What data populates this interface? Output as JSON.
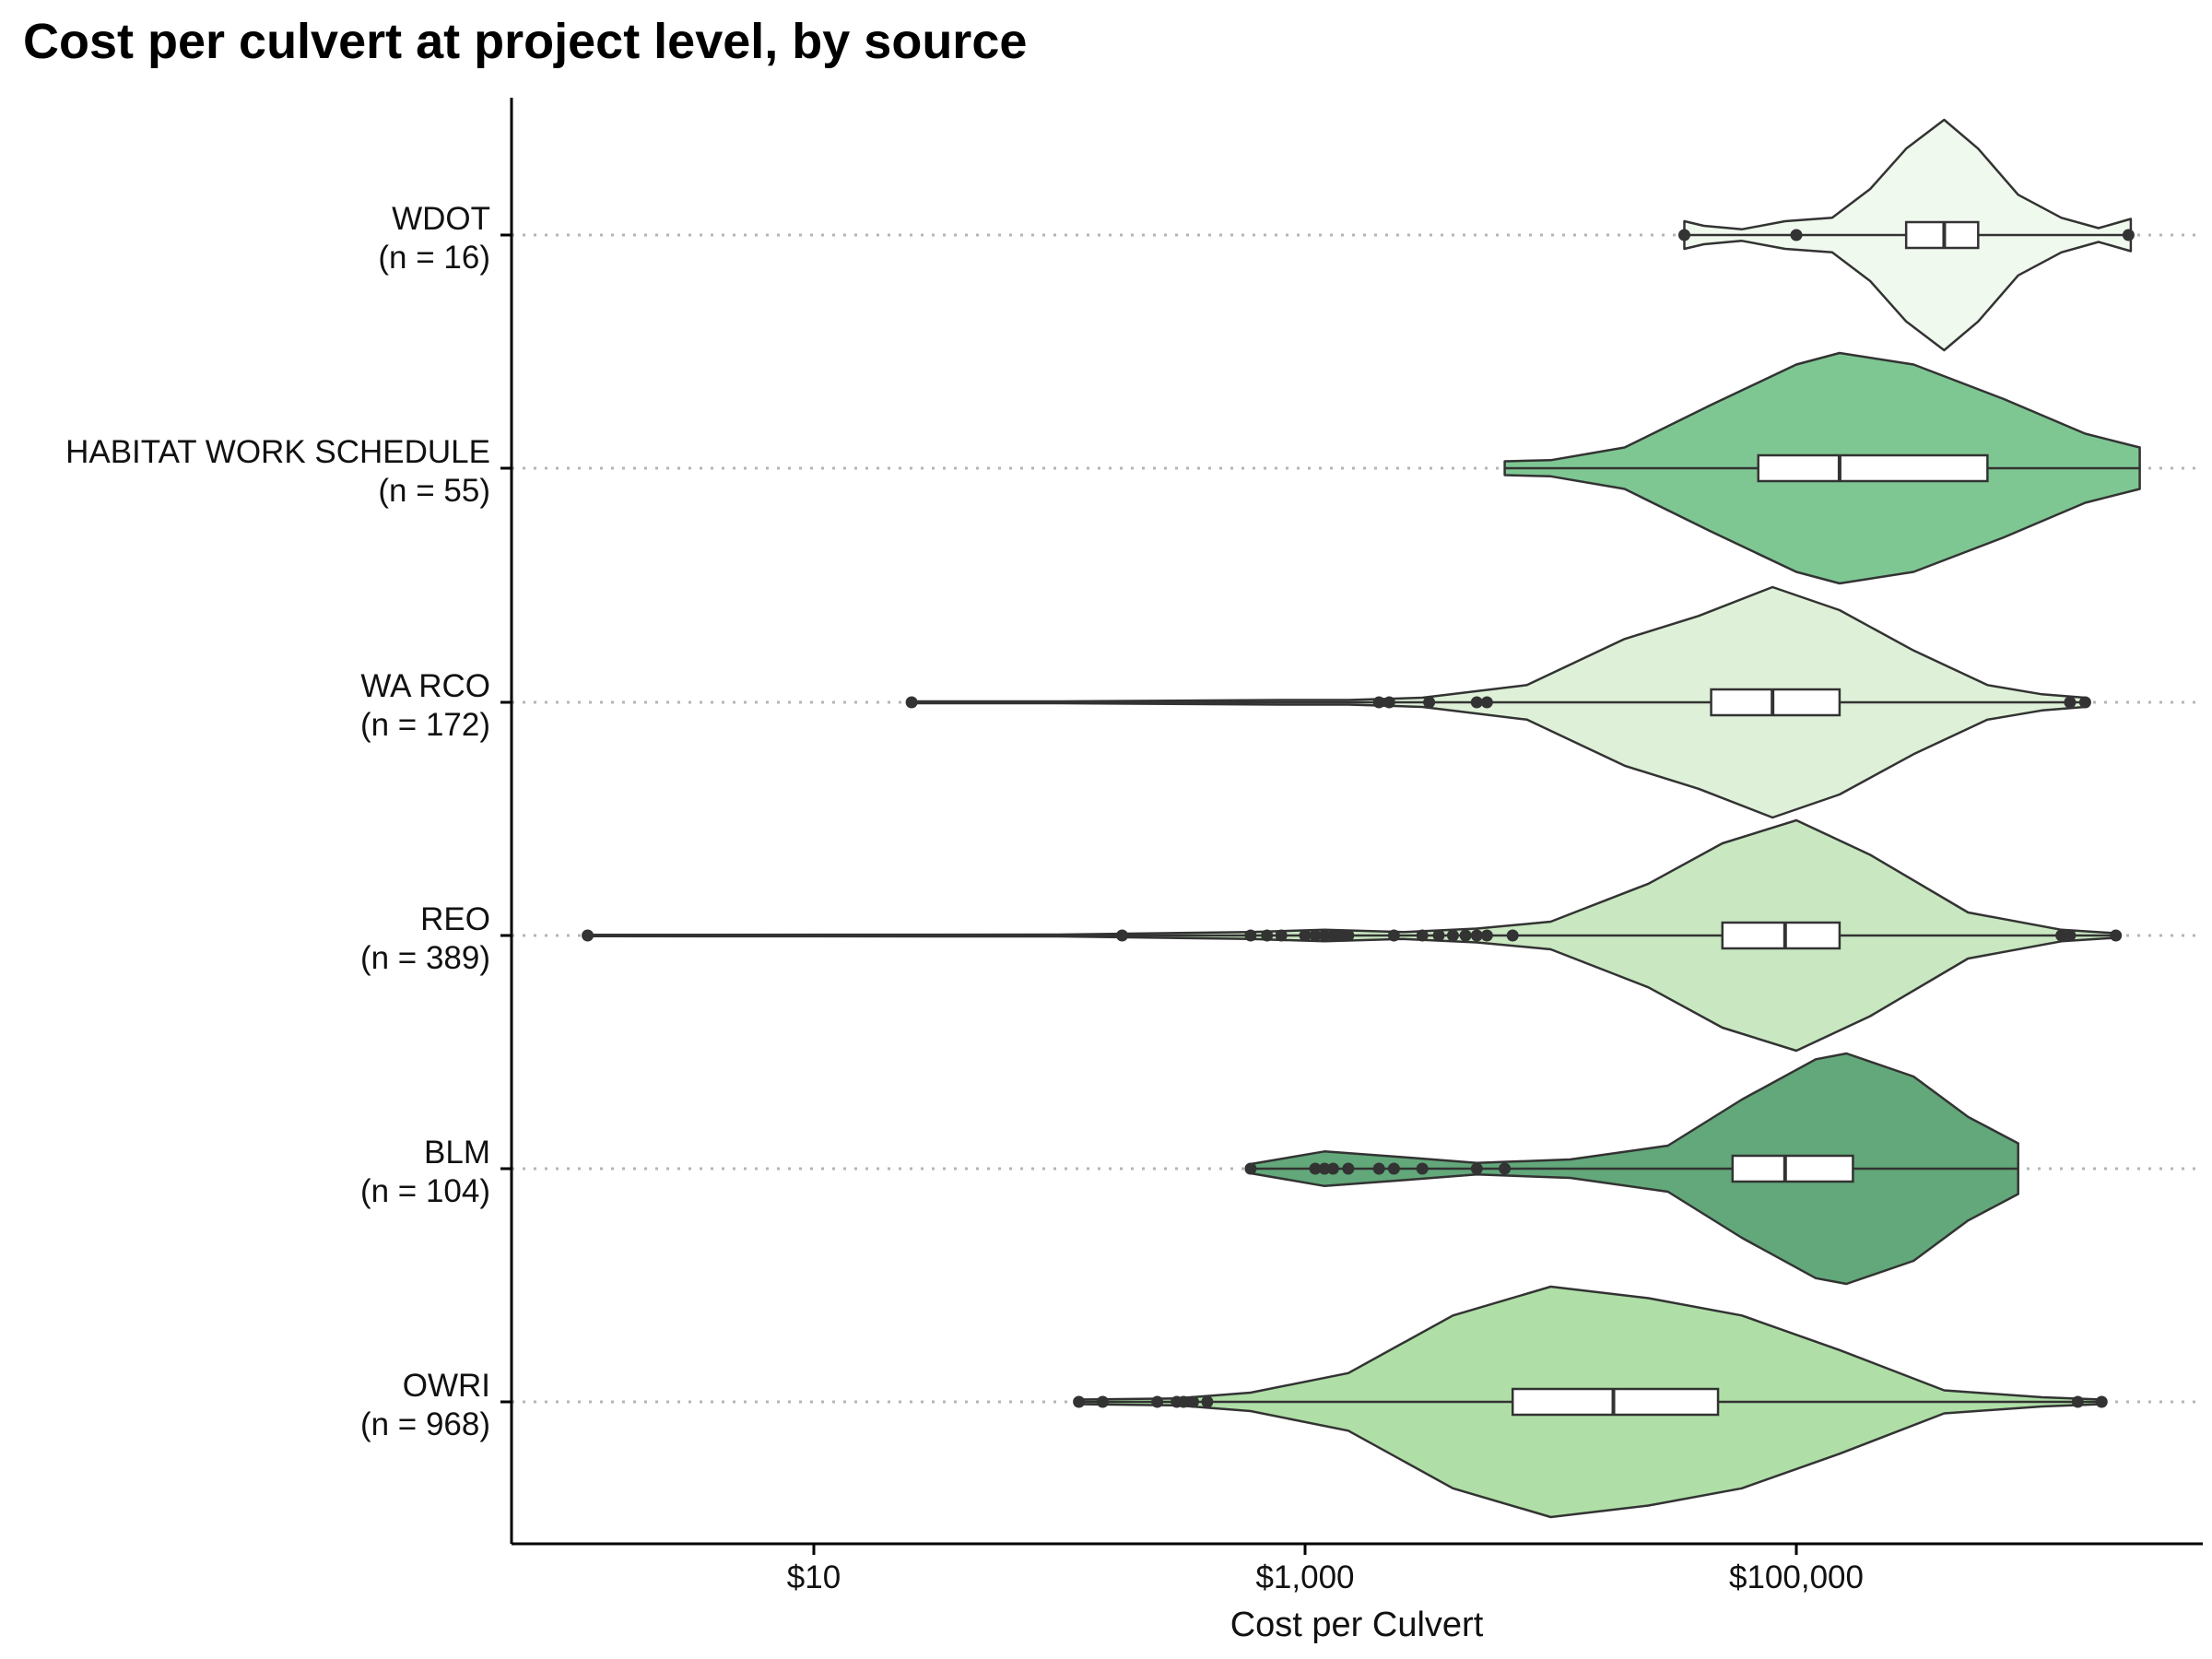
{
  "chart_data": {
    "type": "violin",
    "title": "Cost per culvert at project level, by source",
    "xlabel": "Cost per Culvert",
    "ylabel": "",
    "x_scale": "log10",
    "xlim": [
      1,
      3000000
    ],
    "x_ticks": [
      {
        "value": 10,
        "label": "$10"
      },
      {
        "value": 1000,
        "label": "$1,000"
      },
      {
        "value": 100000,
        "label": "$100,000"
      }
    ],
    "grid": "dotted horizontal line at each category",
    "legend": "none",
    "series": [
      {
        "name": "WDOT",
        "label": "WDOT",
        "n_label": "(n = 16)",
        "color": "#f0f9ee",
        "min": 35000,
        "q1": 280000,
        "median": 400000,
        "q3": 550000,
        "whisker_low": 145000,
        "max": 2300000,
        "outliers": [
          35000,
          100000,
          2250000
        ],
        "density": [
          [
            35000,
            0.12
          ],
          [
            42000,
            0.08
          ],
          [
            60000,
            0.05
          ],
          [
            90000,
            0.12
          ],
          [
            140000,
            0.15
          ],
          [
            200000,
            0.4
          ],
          [
            280000,
            0.75
          ],
          [
            400000,
            1.0
          ],
          [
            550000,
            0.75
          ],
          [
            800000,
            0.35
          ],
          [
            1200000,
            0.15
          ],
          [
            1700000,
            0.06
          ],
          [
            2300000,
            0.14
          ]
        ]
      },
      {
        "name": "HABITAT WORK SCHEDULE",
        "label": "HABITAT WORK SCHEDULE",
        "n_label": "(n = 55)",
        "color": "#7ec793",
        "min": 6500,
        "q1": 70000,
        "median": 150000,
        "q3": 600000,
        "whisker_low": 6500,
        "max": 2500000,
        "outliers": [],
        "density": [
          [
            6500,
            0.06
          ],
          [
            10000,
            0.07
          ],
          [
            20000,
            0.18
          ],
          [
            45000,
            0.55
          ],
          [
            100000,
            0.9
          ],
          [
            150000,
            1.0
          ],
          [
            300000,
            0.9
          ],
          [
            700000,
            0.6
          ],
          [
            1500000,
            0.3
          ],
          [
            2500000,
            0.18
          ]
        ]
      },
      {
        "name": "WA RCO",
        "label": "WA RCO",
        "n_label": "(n = 172)",
        "color": "#def1d8",
        "min": 25,
        "q1": 45000,
        "median": 80000,
        "q3": 150000,
        "whisker_low": 8000,
        "max": 1500000,
        "outliers": [
          25,
          2000,
          2200,
          3200,
          5000,
          5500,
          1300000,
          1500000
        ],
        "density": [
          [
            25,
            0.008
          ],
          [
            100,
            0.008
          ],
          [
            800,
            0.02
          ],
          [
            1500,
            0.02
          ],
          [
            3000,
            0.04
          ],
          [
            8000,
            0.15
          ],
          [
            20000,
            0.55
          ],
          [
            40000,
            0.75
          ],
          [
            80000,
            1.0
          ],
          [
            150000,
            0.8
          ],
          [
            300000,
            0.45
          ],
          [
            600000,
            0.15
          ],
          [
            1000000,
            0.07
          ],
          [
            1500000,
            0.04
          ]
        ]
      },
      {
        "name": "REO",
        "label": "REO",
        "n_label": "(n = 389)",
        "color": "#c9e8c1",
        "min": 1.2,
        "q1": 50000,
        "median": 90000,
        "q3": 150000,
        "whisker_low": 6000,
        "max": 2000000,
        "outliers": [
          1.2,
          180,
          600,
          700,
          800,
          1000,
          1100,
          1200,
          1300,
          1400,
          1500,
          2300,
          3000,
          3500,
          4000,
          4500,
          5000,
          5500,
          7000,
          1200000,
          1300000,
          2000000
        ],
        "density": [
          [
            1.2,
            0.006
          ],
          [
            100,
            0.008
          ],
          [
            600,
            0.03
          ],
          [
            1200,
            0.05
          ],
          [
            2500,
            0.03
          ],
          [
            5000,
            0.06
          ],
          [
            10000,
            0.12
          ],
          [
            25000,
            0.45
          ],
          [
            50000,
            0.8
          ],
          [
            100000,
            1.0
          ],
          [
            200000,
            0.7
          ],
          [
            500000,
            0.2
          ],
          [
            1200000,
            0.05
          ],
          [
            2000000,
            0.02
          ]
        ]
      },
      {
        "name": "BLM",
        "label": "BLM",
        "n_label": "(n = 104)",
        "color": "#62a87a",
        "min": 600,
        "q1": 55000,
        "median": 90000,
        "q3": 170000,
        "whisker_low": 12000,
        "max": 800000,
        "outliers": [
          600,
          1100,
          1200,
          1300,
          1500,
          2000,
          2300,
          3000,
          5000,
          6500
        ],
        "density": [
          [
            600,
            0.04
          ],
          [
            1200,
            0.15
          ],
          [
            2500,
            0.1
          ],
          [
            5000,
            0.05
          ],
          [
            12000,
            0.08
          ],
          [
            30000,
            0.2
          ],
          [
            60000,
            0.6
          ],
          [
            120000,
            0.95
          ],
          [
            160000,
            1.0
          ],
          [
            300000,
            0.8
          ],
          [
            500000,
            0.45
          ],
          [
            800000,
            0.22
          ]
        ]
      },
      {
        "name": "OWRI",
        "label": "OWRI",
        "n_label": "(n = 968)",
        "color": "#afdfa7",
        "min": 120,
        "q1": 7000,
        "median": 18000,
        "q3": 48000,
        "whisker_low": 800,
        "max": 1750000,
        "outliers": [
          120,
          150,
          250,
          300,
          320,
          350,
          400,
          1400000,
          1750000
        ],
        "density": [
          [
            120,
            0.02
          ],
          [
            300,
            0.03
          ],
          [
            600,
            0.08
          ],
          [
            1500,
            0.25
          ],
          [
            4000,
            0.75
          ],
          [
            10000,
            1.0
          ],
          [
            25000,
            0.9
          ],
          [
            60000,
            0.75
          ],
          [
            150000,
            0.45
          ],
          [
            400000,
            0.1
          ],
          [
            1000000,
            0.04
          ],
          [
            1750000,
            0.02
          ]
        ]
      }
    ]
  }
}
